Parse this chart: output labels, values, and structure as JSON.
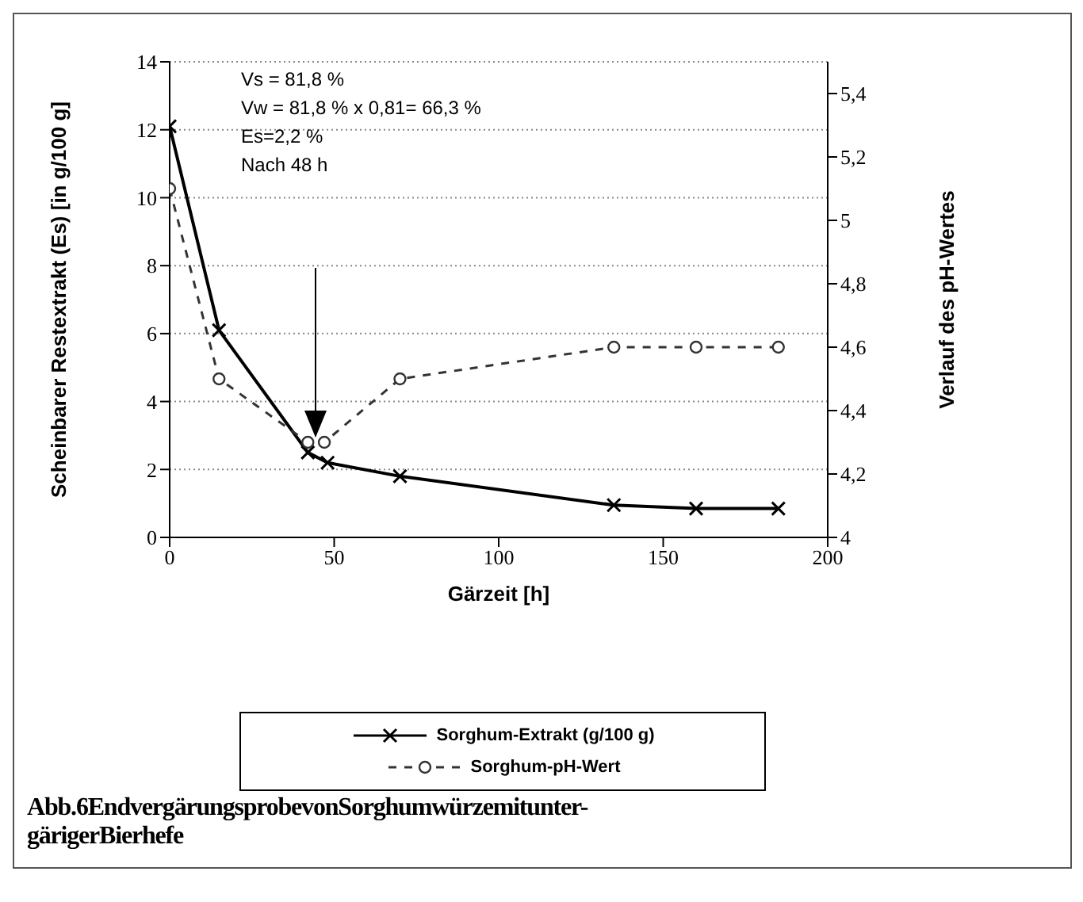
{
  "chart_data": {
    "type": "line",
    "xlabel": "Gärzeit [h]",
    "ylabel": "Scheinbarer Restextrakt (Es) [in g/100 g]",
    "y2label": "Verlauf des pH-Wertes",
    "annotations": [
      "Vs = 81,8 %",
      "Vw = 81,8 % x 0,81= 66,3 %",
      "Es=2,2 %",
      "Nach 48 h",
      "Abb.6EndvergärungsprobevonSorghumwürzemitunter-gärigerBierhefe"
    ],
    "series": [
      {
        "name": "Sorghum-Extrakt (g/100 g)",
        "color": "#000000",
        "marker": "cross",
        "line_style": "solid",
        "x": [
          0,
          15,
          42,
          48,
          70,
          135,
          160,
          185
        ],
        "values": [
          12.1,
          6.1,
          2.5,
          2.2,
          1.8,
          0.95,
          0.85,
          0.85
        ]
      },
      {
        "name": "Sorghum-pH-Wert",
        "color": "#333333",
        "marker": "circle",
        "line_style": "dashed",
        "axis": "y2",
        "x": [
          0,
          15,
          42,
          47,
          70,
          135,
          160,
          185
        ],
        "values": [
          5.1,
          4.5,
          4.3,
          4.3,
          4.5,
          4.6,
          4.6,
          4.6
        ]
      }
    ],
    "xlim": [
      0,
      200
    ],
    "xticks": [
      0,
      50,
      100,
      150,
      200
    ],
    "ylim": [
      0,
      14
    ],
    "yticks": [
      0,
      2,
      4,
      6,
      8,
      10,
      12,
      14
    ],
    "y2lim": [
      4,
      5.5
    ],
    "y2ticks": [
      {
        "value": 4,
        "label": "4"
      },
      {
        "value": 4.2,
        "label": "4,2"
      },
      {
        "value": 4.4,
        "label": "4,4"
      },
      {
        "value": 4.6,
        "label": "4,6"
      },
      {
        "value": 4.8,
        "label": "4,8"
      },
      {
        "value": 5,
        "label": "5"
      },
      {
        "value": 5.2,
        "label": "5,2"
      },
      {
        "value": 5.4,
        "label": "5,4"
      }
    ],
    "grid": "y",
    "legend": "bottom"
  }
}
